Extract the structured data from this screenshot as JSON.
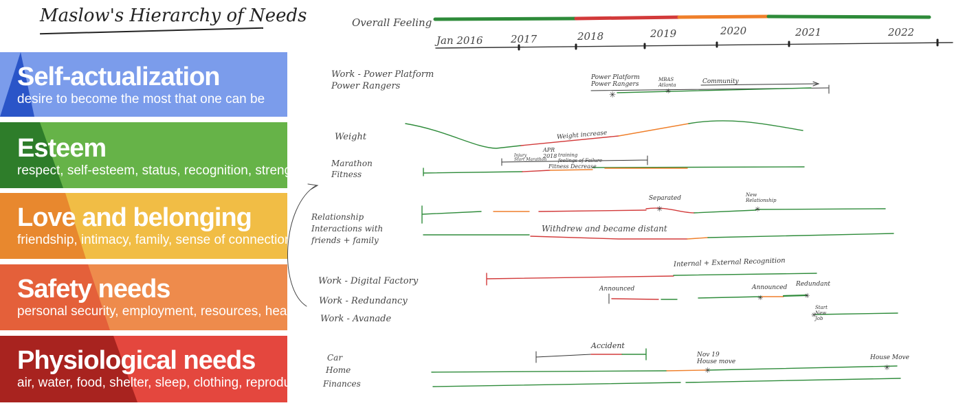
{
  "header": {
    "title": "Maslow's Hierarchy of Needs"
  },
  "pyramid": {
    "levels": [
      {
        "title": "Self-actualization",
        "desc": "desire to become the most that one can be",
        "color": "#7b9ceb",
        "accent": "#2a55c8"
      },
      {
        "title": "Esteem",
        "desc": "respect, self-esteem, status, recognition, strength, freedom",
        "color": "#66b348",
        "accent": "#2e7d2a"
      },
      {
        "title": "Love and belonging",
        "desc": "friendship, intimacy, family, sense of connection",
        "color": "#f1bd45",
        "accent": "#e8882e"
      },
      {
        "title": "Safety needs",
        "desc": "personal security, employment, resources, health, property",
        "color": "#ee8b4c",
        "accent": "#e4603a"
      },
      {
        "title": "Physiological needs",
        "desc": "air, water, food, shelter, sleep, clothing, reproduction",
        "color": "#e4473e",
        "accent": "#a8231f"
      }
    ]
  },
  "timeline": {
    "overall_label": "Overall Feeling",
    "years": [
      "Jan 2016",
      "2017",
      "2018",
      "2019",
      "2020",
      "2021",
      "2022"
    ],
    "rows": {
      "work_power": "Work - Power Platform\nPower Rangers",
      "weight": "Weight",
      "marathon": "Marathon\nFitness",
      "relationship": "Relationship\nInteractions with\nfriends + family",
      "work_digital": "Work - Digital Factory",
      "work_redundancy": "Work - Redundancy",
      "work_avanade": "Work - Avanade",
      "car": "Car",
      "home": "Home",
      "finances": "Finances"
    },
    "annotations": {
      "power_platform": "Power Platform\nPower Rangers",
      "mbas": "MBAS\nAtlanta",
      "community": "Community",
      "weight_increase": "Weight increase",
      "apr_2018": "APR\n2018",
      "injury": "Injury\nStart Marathon",
      "training": "training\nfeelings of Failure",
      "fitness_decrease": "Fitness Decrease",
      "separated": "Separated",
      "new_relationship": "New\nRelationship",
      "withdrew": "Withdrew and became distant",
      "recognition": "Internal + External Recognition",
      "announced1": "Announced",
      "announced2": "Announced",
      "redundant": "Redundant",
      "start_new_job": "Start\nNew\nJob",
      "accident": "Accident",
      "nov_19": "Nov 19\nHouse move",
      "house_move": "House Move"
    },
    "colors": {
      "good": "#2e8b3a",
      "bad": "#d23a3a",
      "warn": "#ef7f2a",
      "ink": "#333333"
    }
  }
}
